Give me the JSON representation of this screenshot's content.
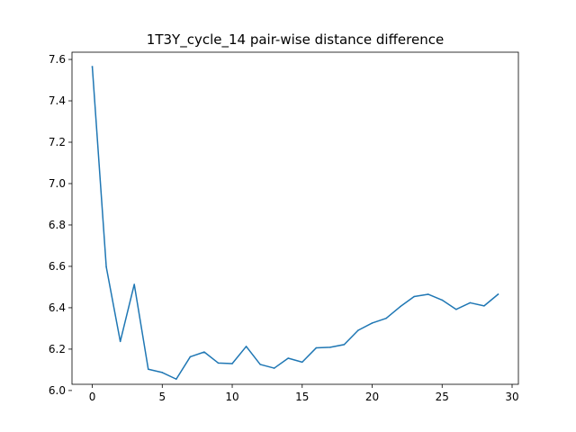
{
  "chart_data": {
    "type": "line",
    "title": "1T3Y_cycle_14 pair-wise distance difference",
    "xlabel": "",
    "ylabel": "",
    "xlim": [
      -1.45,
      30.45
    ],
    "ylim": [
      6.03,
      7.635
    ],
    "x_ticks": [
      0,
      5,
      10,
      15,
      20,
      25,
      30
    ],
    "y_ticks": [
      6.0,
      6.2,
      6.4,
      6.6,
      6.8,
      7.0,
      7.2,
      7.4,
      7.6
    ],
    "x_tick_labels": [
      "0",
      "5",
      "10",
      "15",
      "20",
      "25",
      "30"
    ],
    "y_tick_labels": [
      "6.0",
      "6.2",
      "6.4",
      "6.6",
      "6.8",
      "7.0",
      "7.2",
      "7.4",
      "7.6"
    ],
    "grid": false,
    "line_color": "#1f77b4",
    "series": [
      {
        "x": [
          0,
          1,
          2,
          3,
          4,
          5,
          6,
          7,
          8,
          9,
          10,
          11,
          12,
          13,
          14,
          15,
          16,
          17,
          18,
          19,
          20,
          21,
          22,
          23,
          24,
          25,
          26,
          27,
          28,
          29
        ],
        "values": [
          7.565,
          6.597,
          6.237,
          6.513,
          6.103,
          6.087,
          6.055,
          6.163,
          6.186,
          6.133,
          6.13,
          6.213,
          6.126,
          6.108,
          6.156,
          6.137,
          6.206,
          6.209,
          6.222,
          6.291,
          6.326,
          6.349,
          6.405,
          6.454,
          6.465,
          6.437,
          6.392,
          6.424,
          6.409,
          6.465
        ]
      }
    ]
  }
}
